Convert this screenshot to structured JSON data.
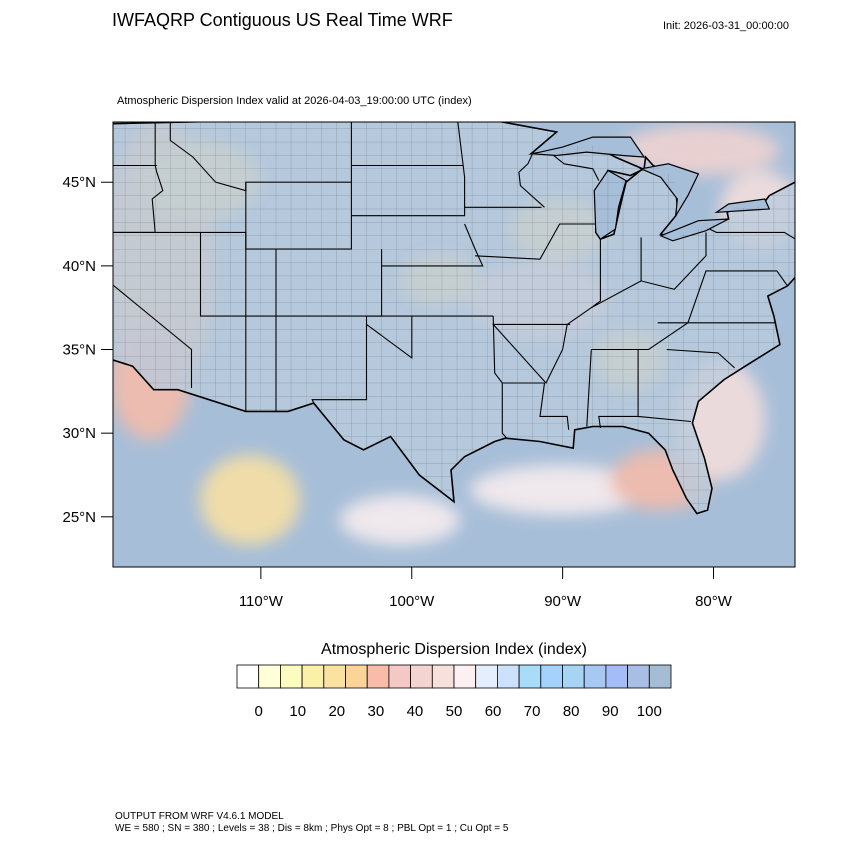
{
  "header": {
    "title": "IWFAQRP Contiguous US Real Time WRF",
    "init": "Init: 2026-03-31_00:00:00"
  },
  "map": {
    "subtitle": "Atmospheric Dispersion Index valid at 2026-04-03_19:00:00 UTC   (index)",
    "lat_ticks": [
      "45°N",
      "40°N",
      "35°N",
      "30°N",
      "25°N"
    ],
    "lon_ticks": [
      "110°W",
      "100°W",
      "90°W",
      "80°W"
    ],
    "extent": {
      "lon_min": -119.8,
      "lon_max": -74.6,
      "lat_min": 22.0,
      "lat_max": 48.6
    },
    "ocean_color": "#a7bed8",
    "land_color": "#b8cadc",
    "features": {
      "land_outline": [
        [
          -124.5,
          48.4
        ],
        [
          -123,
          47
        ],
        [
          -124,
          46
        ],
        [
          -124.3,
          43
        ],
        [
          -124.2,
          40.5
        ],
        [
          -123.8,
          39
        ],
        [
          -122.5,
          37.6
        ],
        [
          -121.8,
          36.2
        ],
        [
          -120.6,
          34.6
        ],
        [
          -118.5,
          34
        ],
        [
          -117.1,
          32.6
        ],
        [
          -115.5,
          32.6
        ],
        [
          -111,
          31.3
        ],
        [
          -108.2,
          31.3
        ],
        [
          -106.5,
          31.8
        ],
        [
          -104.5,
          29.6
        ],
        [
          -103.2,
          29
        ],
        [
          -101.4,
          29.8
        ],
        [
          -99.5,
          27.5
        ],
        [
          -97.2,
          25.9
        ],
        [
          -97.4,
          27.8
        ],
        [
          -96.5,
          28.6
        ],
        [
          -94.5,
          29.5
        ],
        [
          -93.8,
          29.7
        ],
        [
          -91.5,
          29.5
        ],
        [
          -89.3,
          29.1
        ],
        [
          -89.2,
          30.2
        ],
        [
          -88,
          30.4
        ],
        [
          -86,
          30.4
        ],
        [
          -84.3,
          30
        ],
        [
          -83.2,
          29
        ],
        [
          -82.7,
          27.8
        ],
        [
          -81.8,
          26.1
        ],
        [
          -81.1,
          25.2
        ],
        [
          -80.4,
          25.4
        ],
        [
          -80.1,
          26.7
        ],
        [
          -80.6,
          28.5
        ],
        [
          -81.4,
          30.6
        ],
        [
          -81,
          31.9
        ],
        [
          -79.3,
          33.2
        ],
        [
          -77.9,
          34
        ],
        [
          -75.6,
          35.3
        ],
        [
          -76,
          37
        ],
        [
          -76.4,
          38.2
        ],
        [
          -75.1,
          38.8
        ],
        [
          -74.2,
          39.7
        ],
        [
          -73.9,
          40.6
        ],
        [
          -72,
          41.1
        ],
        [
          -70.8,
          41.6
        ],
        [
          -70,
          42
        ],
        [
          -70.8,
          42.9
        ],
        [
          -70.2,
          43.7
        ],
        [
          -69,
          44.2
        ],
        [
          -67,
          44.8
        ],
        [
          -67.8,
          47
        ],
        [
          -69.2,
          47.4
        ],
        [
          -70.9,
          45.3
        ],
        [
          -74.6,
          45.0
        ],
        [
          -76.3,
          44.2
        ],
        [
          -76.8,
          43.6
        ],
        [
          -78.7,
          43.4
        ],
        [
          -79.1,
          43.2
        ],
        [
          -79.0,
          42.8
        ],
        [
          -80.5,
          42.4
        ],
        [
          -82.5,
          41.7
        ],
        [
          -83.5,
          41.9
        ],
        [
          -82.5,
          43
        ],
        [
          -82.4,
          43.6
        ],
        [
          -82.6,
          45.3
        ],
        [
          -84,
          46
        ],
        [
          -84.5,
          46.5
        ],
        [
          -84.6,
          45.8
        ],
        [
          -85.5,
          45.4
        ],
        [
          -87,
          45.7
        ],
        [
          -87.6,
          44
        ],
        [
          -87.8,
          42
        ],
        [
          -87.5,
          41.6
        ],
        [
          -86.6,
          41.9
        ],
        [
          -86.2,
          43.5
        ],
        [
          -85.8,
          45
        ],
        [
          -84.7,
          45.8
        ],
        [
          -86.5,
          46.5
        ],
        [
          -88.4,
          47.4
        ],
        [
          -89.5,
          47
        ],
        [
          -92.1,
          46.7
        ],
        [
          -90.4,
          48
        ],
        [
          -94.6,
          48.7
        ],
        [
          -95.2,
          49
        ],
        [
          -124.5,
          48.4
        ]
      ],
      "state_lines": [
        [
          [
            -117,
            49
          ],
          [
            -117,
            46
          ],
          [
            -116.9,
            45.6
          ],
          [
            -116.5,
            44.5
          ],
          [
            -117.2,
            44
          ],
          [
            -117,
            42
          ],
          [
            -120,
            42
          ],
          [
            -120,
            39
          ],
          [
            -114.6,
            35
          ],
          [
            -114.6,
            32.7
          ]
        ],
        [
          [
            -124.2,
            42
          ],
          [
            -111,
            42
          ],
          [
            -111,
            41
          ],
          [
            -104,
            41
          ],
          [
            -104,
            45
          ],
          [
            -104,
            49
          ]
        ],
        [
          [
            -120,
            42
          ],
          [
            -120,
            46
          ],
          [
            -116.9,
            46
          ]
        ],
        [
          [
            -116,
            49
          ],
          [
            -116,
            47.5
          ],
          [
            -114.5,
            46.5
          ],
          [
            -113,
            45
          ],
          [
            -111,
            44.5
          ],
          [
            -111,
            45
          ],
          [
            -104,
            45
          ]
        ],
        [
          [
            -114,
            42
          ],
          [
            -114,
            37
          ],
          [
            -109,
            37
          ],
          [
            -104,
            37
          ],
          [
            -102,
            37
          ],
          [
            -94.6,
            37
          ]
        ],
        [
          [
            -111,
            45
          ],
          [
            -111,
            41
          ],
          [
            -111,
            37
          ],
          [
            -111,
            31.3
          ]
        ],
        [
          [
            -109,
            41
          ],
          [
            -109,
            31.3
          ]
        ],
        [
          [
            -102,
            41
          ],
          [
            -102,
            37
          ],
          [
            -103,
            37
          ],
          [
            -103,
            32
          ],
          [
            -106.6,
            32
          ],
          [
            -106.5,
            31.8
          ]
        ],
        [
          [
            -104,
            43
          ],
          [
            -96.5,
            43
          ],
          [
            -96.5,
            45.3
          ],
          [
            -97,
            49
          ]
        ],
        [
          [
            -104,
            46
          ],
          [
            -96.6,
            46
          ]
        ],
        [
          [
            -102,
            40
          ],
          [
            -95.3,
            40
          ],
          [
            -95.8,
            41
          ],
          [
            -96.5,
            42.5
          ]
        ],
        [
          [
            -100,
            37
          ],
          [
            -100,
            34.5
          ],
          [
            -103,
            36.5
          ],
          [
            -103,
            36.5
          ]
        ],
        [
          [
            -94.6,
            37
          ],
          [
            -94.5,
            33.6
          ],
          [
            -94,
            33
          ],
          [
            -94,
            30
          ],
          [
            -93.7,
            29.7
          ]
        ],
        [
          [
            -94,
            33
          ],
          [
            -91.2,
            33
          ],
          [
            -91.5,
            31
          ],
          [
            -89.7,
            31
          ],
          [
            -89.6,
            30.2
          ]
        ],
        [
          [
            -95.8,
            40.6
          ],
          [
            -91.5,
            40.4
          ],
          [
            -90.2,
            42.5
          ],
          [
            -87,
            42.5
          ]
        ],
        [
          [
            -91.4,
            43.5
          ],
          [
            -96.5,
            43.5
          ]
        ],
        [
          [
            -92,
            46.7
          ],
          [
            -92.3,
            46.1
          ],
          [
            -92.9,
            45.6
          ],
          [
            -92.8,
            44.8
          ],
          [
            -91.2,
            43.5
          ]
        ],
        [
          [
            -90.6,
            46.6
          ],
          [
            -89.9,
            46.1
          ],
          [
            -88,
            45.8
          ],
          [
            -87.6,
            45.1
          ]
        ],
        [
          [
            -89.5,
            36.5
          ],
          [
            -94.6,
            36.5
          ],
          [
            -91.1,
            33
          ],
          [
            -90,
            35
          ],
          [
            -89.7,
            36.5
          ],
          [
            -88.1,
            37.5
          ],
          [
            -84.8,
            39.1
          ],
          [
            -82.6,
            38.6
          ],
          [
            -80.5,
            40.6
          ],
          [
            -80.5,
            42
          ]
        ],
        [
          [
            -87.5,
            41.7
          ],
          [
            -87.5,
            37.9
          ],
          [
            -88.1,
            37.5
          ]
        ],
        [
          [
            -84.8,
            41.7
          ],
          [
            -84.8,
            39.1
          ]
        ],
        [
          [
            -88.1,
            35
          ],
          [
            -84.3,
            35
          ],
          [
            -81.7,
            36.6
          ],
          [
            -75.9,
            36.6
          ]
        ],
        [
          [
            -88.1,
            35
          ],
          [
            -88.4,
            30.4
          ]
        ],
        [
          [
            -85,
            35
          ],
          [
            -85,
            31
          ],
          [
            -87.6,
            31
          ],
          [
            -87.5,
            30.3
          ]
        ],
        [
          [
            -85,
            31
          ],
          [
            -81.5,
            30.7
          ]
        ],
        [
          [
            -83.1,
            35
          ],
          [
            -79.7,
            34.8
          ],
          [
            -78.6,
            33.9
          ]
        ],
        [
          [
            -83.7,
            36.6
          ],
          [
            -81.7,
            36.6
          ],
          [
            -80.5,
            39.7
          ],
          [
            -75.8,
            39.7
          ],
          [
            -75.1,
            38.8
          ]
        ],
        [
          [
            -80.5,
            42.3
          ],
          [
            -79.8,
            42
          ],
          [
            -75.3,
            42
          ],
          [
            -73.5,
            41
          ],
          [
            -73.3,
            42.8
          ],
          [
            -72.5,
            42.7
          ],
          [
            -71.5,
            45
          ],
          [
            -70.9,
            45.3
          ]
        ],
        [
          [
            -71.8,
            42
          ],
          [
            -71.8,
            41.1
          ]
        ],
        [
          [
            -73.3,
            45
          ],
          [
            -73.3,
            42.8
          ]
        ]
      ],
      "lakes": [
        [
          [
            -92,
            46.7
          ],
          [
            -90,
            47.1
          ],
          [
            -88,
            47.7
          ],
          [
            -85.5,
            47.7
          ],
          [
            -84.6,
            46.5
          ],
          [
            -86,
            46.6
          ],
          [
            -88.4,
            46.8
          ],
          [
            -90.4,
            46.6
          ]
        ],
        [
          [
            -87.8,
            42
          ],
          [
            -87.9,
            44.5
          ],
          [
            -87,
            45.7
          ],
          [
            -85.8,
            45.1
          ],
          [
            -86.3,
            43.5
          ],
          [
            -86.5,
            42.2
          ],
          [
            -87.5,
            41.6
          ]
        ],
        [
          [
            -84.8,
            45.8
          ],
          [
            -83.5,
            45.3
          ],
          [
            -82.4,
            44
          ],
          [
            -82.5,
            43
          ],
          [
            -81.7,
            44.2
          ],
          [
            -81,
            45.5
          ],
          [
            -83,
            46.1
          ]
        ],
        [
          [
            -83.5,
            41.8
          ],
          [
            -81,
            42.7
          ],
          [
            -79,
            42.8
          ],
          [
            -80.5,
            42.1
          ],
          [
            -82.7,
            41.5
          ]
        ],
        [
          [
            -79.8,
            43.2
          ],
          [
            -76.3,
            43.4
          ],
          [
            -76.6,
            44
          ],
          [
            -79,
            43.7
          ]
        ]
      ]
    }
  },
  "colorbar": {
    "title": "Atmospheric Dispersion Index  (index)",
    "labels": [
      "0",
      "10",
      "20",
      "30",
      "40",
      "50",
      "60",
      "70",
      "80",
      "90",
      "100"
    ],
    "colors": [
      "#ffffff",
      "#ffffd8",
      "#fcfcc0",
      "#fcf0a8",
      "#fce2a0",
      "#fcd498",
      "#f8bca8",
      "#f4c8c4",
      "#f4d4d0",
      "#f8e0dc",
      "#fcf0f0",
      "#e4eefc",
      "#cce2fc",
      "#a8dcf8",
      "#a4d2fc",
      "#a8d4f4",
      "#a8c8f4",
      "#a4bcf8",
      "#a8bee4",
      "#a4bcd4"
    ]
  },
  "footer": {
    "line1": "OUTPUT FROM WRF V4.6.1 MODEL",
    "line2": "WE = 580 ; SN = 380 ; Levels = 38 ; Dis = 8km ; Phys Opt = 8 ; PBL Opt = 1 ; Cu Opt = 5"
  }
}
